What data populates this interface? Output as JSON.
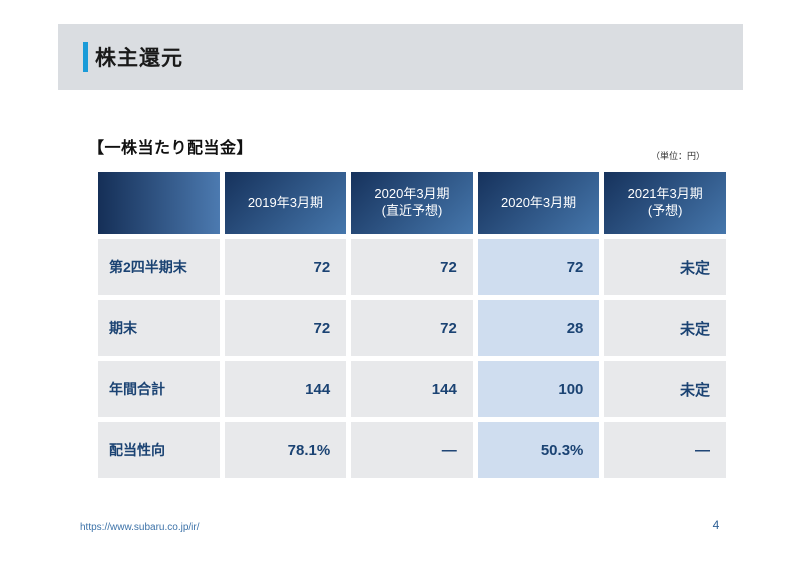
{
  "header": {
    "title": "株主還元"
  },
  "main": {
    "section_heading": "【一株当たり配当金】",
    "unit_note": "（単位：円）"
  },
  "table": {
    "columns": [
      "",
      "2019年3月期",
      "2020年3月期\n(直近予想)",
      "2020年3月期",
      "2021年3月期\n(予想)"
    ],
    "rows": [
      {
        "label": "第2四半期末",
        "values": [
          "72",
          "72",
          "72",
          "未定"
        ]
      },
      {
        "label": "期末",
        "values": [
          "72",
          "72",
          "28",
          "未定"
        ]
      },
      {
        "label": "年間合計",
        "values": [
          "144",
          "144",
          "100",
          "未定"
        ]
      },
      {
        "label": "配当性向",
        "values": [
          "78.1%",
          "—",
          "50.3%",
          "—"
        ]
      }
    ],
    "highlight_value_index": 2
  },
  "footer": {
    "url": "https://www.subaru.co.jp/ir/",
    "page_number": "4"
  },
  "colors": {
    "accent_bar": "#1a9bd8",
    "title_bar_bg": "#dadde1",
    "header_gradient_dark": "#16325c",
    "header_gradient_light": "#4677ac",
    "cell_gray": "#e8e9eb",
    "cell_highlight": "#cfddef",
    "value_text": "#1b4373"
  }
}
